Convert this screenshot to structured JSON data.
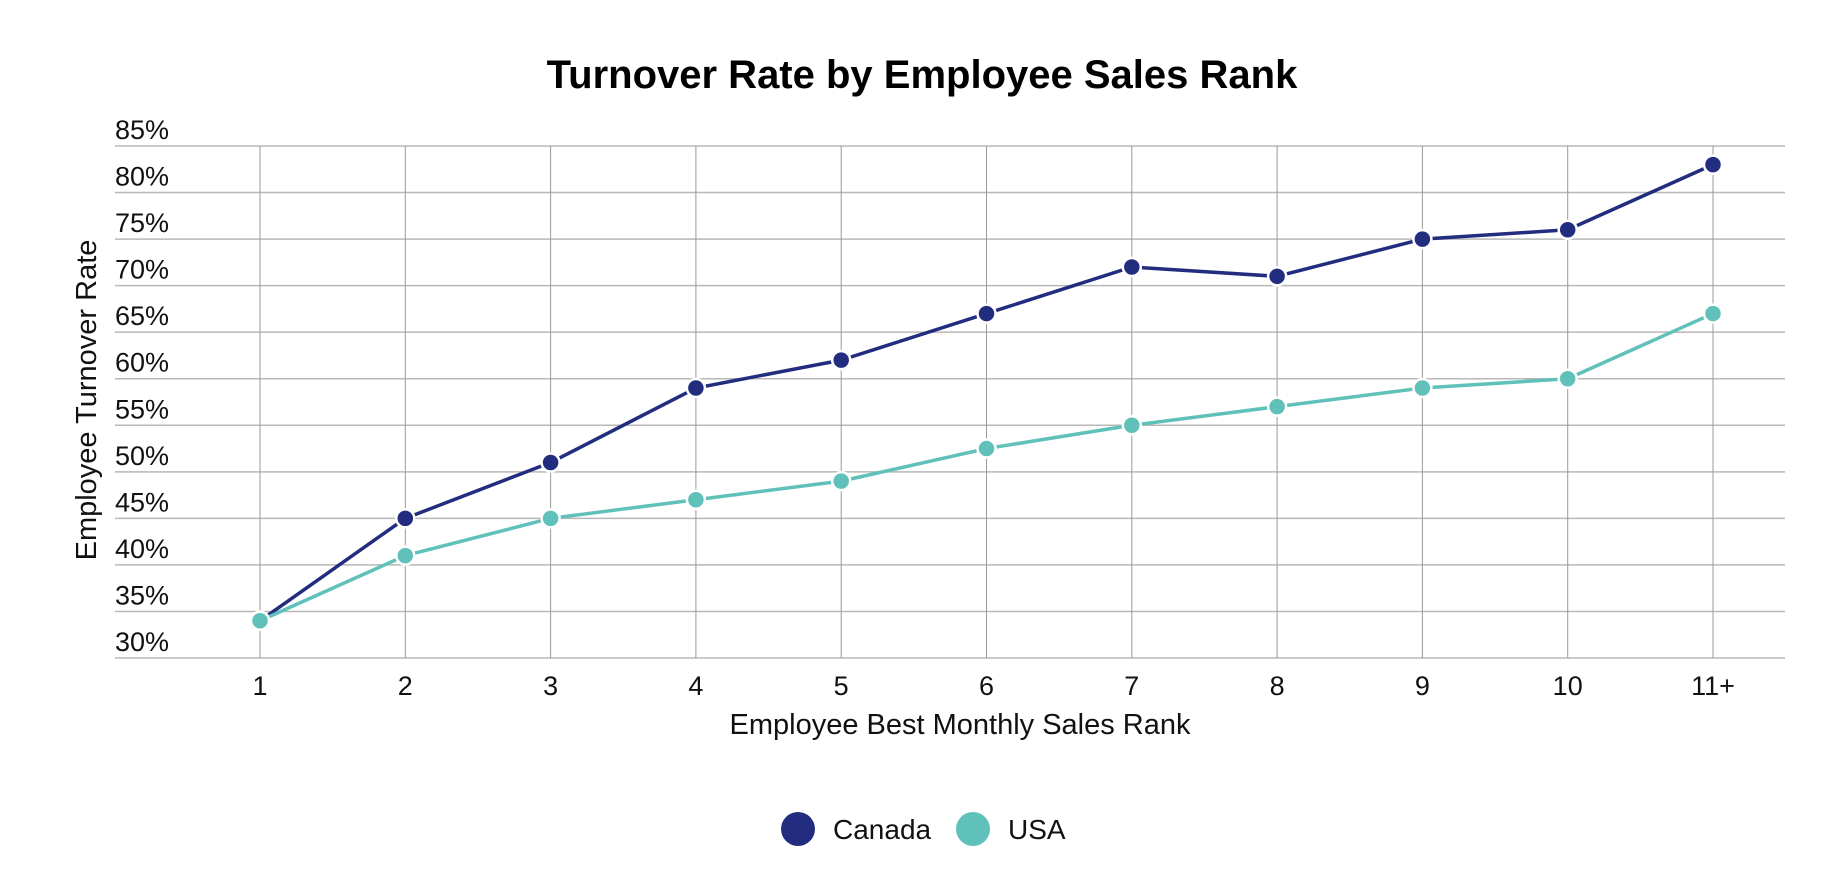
{
  "chart_data": {
    "type": "line",
    "title": "Turnover Rate by Employee Sales Rank",
    "xlabel": "Employee Best Monthly Sales Rank",
    "ylabel": "Employee Turnover Rate",
    "categories": [
      "1",
      "2",
      "3",
      "4",
      "5",
      "6",
      "7",
      "8",
      "9",
      "10",
      "11+"
    ],
    "y_ticks": [
      30,
      35,
      40,
      45,
      50,
      55,
      60,
      65,
      70,
      75,
      80,
      85
    ],
    "y_tick_suffix": "%",
    "ylim": [
      30,
      85
    ],
    "grid": true,
    "legend_position": "bottom-center",
    "series": [
      {
        "name": "Canada",
        "color": "#232d7f",
        "values": [
          34,
          45,
          51,
          59,
          62,
          67,
          72,
          71,
          75,
          76,
          83
        ]
      },
      {
        "name": "USA",
        "color": "#5fc1b9",
        "values": [
          34,
          41,
          45,
          47,
          49,
          52.5,
          55,
          57,
          59,
          60,
          67
        ]
      }
    ]
  }
}
